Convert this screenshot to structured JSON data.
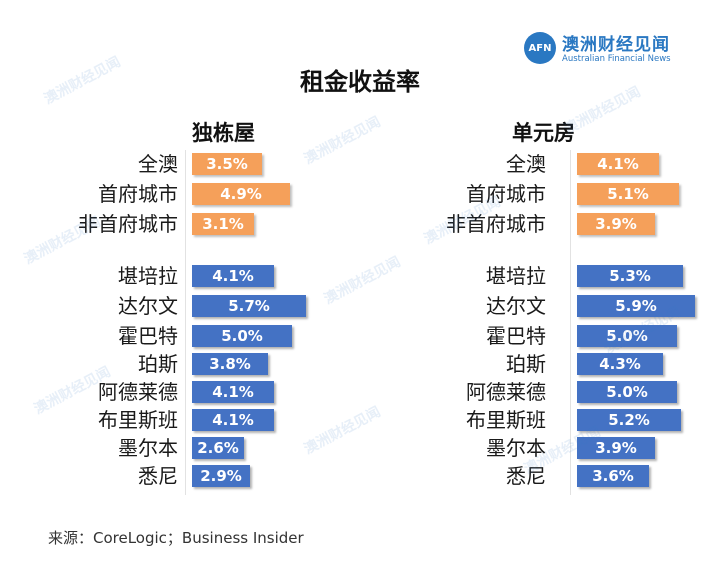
{
  "brand": {
    "logo_text": "AFN",
    "name": "澳洲财经见闻",
    "subtitle": "Australian Financial News"
  },
  "colors": {
    "capital": "#f5a05a",
    "city": "#4472c4",
    "brand": "#2a78c2"
  },
  "source": "来源：CoreLogic；Business Insider",
  "watermark": "澳洲财经见闻",
  "chart_data": [
    {
      "type": "bar",
      "orientation": "horizontal",
      "title": "租金收益率",
      "subtitle": "独栋屋",
      "categories": [
        "全澳",
        "首府城市",
        "非首府城市",
        "堪培拉",
        "达尔文",
        "霍巴特",
        "珀斯",
        "阿德莱德",
        "布里斯班",
        "墨尔本",
        "悉尼"
      ],
      "values": [
        3.5,
        4.9,
        3.1,
        4.1,
        5.7,
        5.0,
        3.8,
        4.1,
        4.1,
        2.6,
        2.9
      ],
      "labels": [
        "3.5%",
        "4.9%",
        "3.1%",
        "4.1%",
        "5.7%",
        "5.0%",
        "3.8%",
        "4.1%",
        "4.1%",
        "2.6%",
        "2.9%"
      ],
      "colors": [
        "#f5a05a",
        "#f5a05a",
        "#f5a05a",
        "#4472c4",
        "#4472c4",
        "#4472c4",
        "#4472c4",
        "#4472c4",
        "#4472c4",
        "#4472c4",
        "#4472c4"
      ],
      "xlim": [
        0,
        6
      ]
    },
    {
      "type": "bar",
      "orientation": "horizontal",
      "subtitle": "单元房",
      "categories": [
        "全澳",
        "首府城市",
        "非首府城市",
        "堪培拉",
        "达尔文",
        "霍巴特",
        "珀斯",
        "阿德莱德",
        "布里斯班",
        "墨尔本",
        "悉尼"
      ],
      "values": [
        4.1,
        5.1,
        3.9,
        5.3,
        5.9,
        5.0,
        4.3,
        5.0,
        5.2,
        3.9,
        3.6
      ],
      "labels": [
        "4.1%",
        "5.1%",
        "3.9%",
        "5.3%",
        "5.9%",
        "5.0%",
        "4.3%",
        "5.0%",
        "5.2%",
        "3.9%",
        "3.6%"
      ],
      "colors": [
        "#f5a05a",
        "#f5a05a",
        "#f5a05a",
        "#4472c4",
        "#4472c4",
        "#4472c4",
        "#4472c4",
        "#4472c4",
        "#4472c4",
        "#4472c4",
        "#4472c4"
      ],
      "xlim": [
        0,
        6
      ]
    }
  ]
}
